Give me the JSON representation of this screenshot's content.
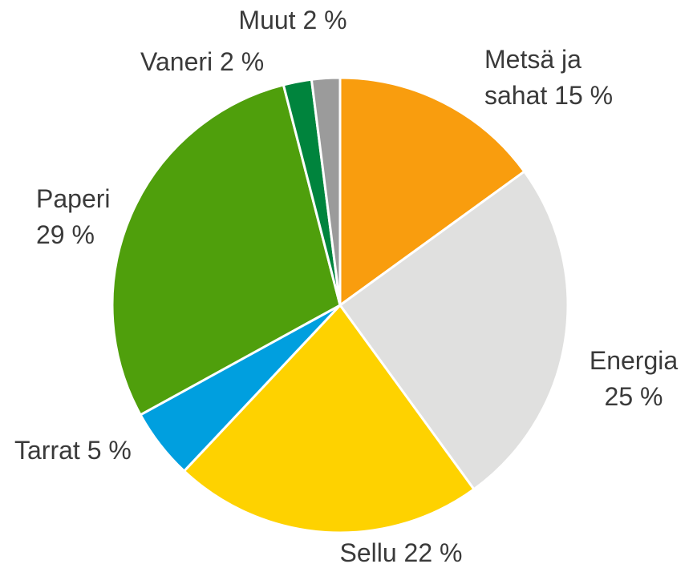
{
  "chart_data": {
    "type": "pie",
    "categories": [
      "Metsä ja sahat",
      "Energia",
      "Sellu",
      "Tarrat",
      "Paperi",
      "Vaneri",
      "Muut"
    ],
    "values": [
      15,
      25,
      22,
      5,
      29,
      2,
      2
    ],
    "value_labels": [
      "15 %",
      "25 %",
      "22 %",
      "5 %",
      "29 %",
      "2 %",
      "2 %"
    ],
    "colors": [
      "#f99d0e",
      "#e0e0df",
      "#fed200",
      "#009fdf",
      "#4f9f0c",
      "#00843d",
      "#9b9b9b"
    ]
  }
}
